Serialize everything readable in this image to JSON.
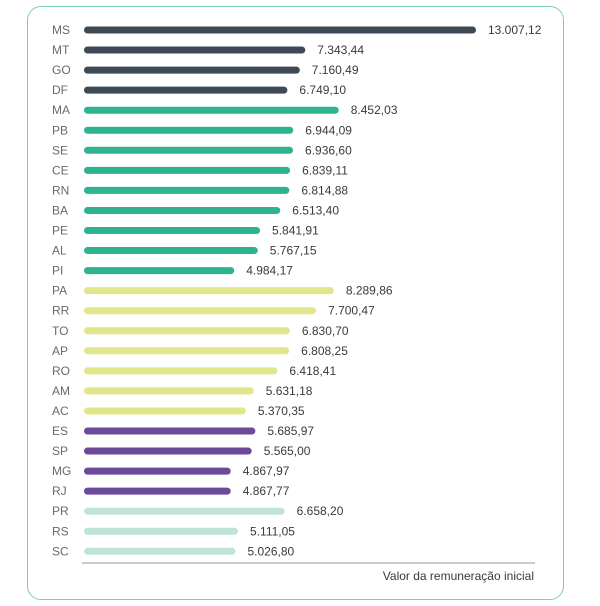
{
  "chart_data": {
    "type": "bar",
    "orientation": "horizontal",
    "title": "",
    "xlabel": "Valor da remuneração inicial",
    "ylabel": "",
    "xlim": [
      0,
      13007.12
    ],
    "grid": false,
    "categories": [
      "MS",
      "MT",
      "GO",
      "DF",
      "MA",
      "PB",
      "SE",
      "CE",
      "RN",
      "BA",
      "PE",
      "AL",
      "PI",
      "PA",
      "RR",
      "TO",
      "AP",
      "RO",
      "AM",
      "AC",
      "ES",
      "SP",
      "MG",
      "RJ",
      "PR",
      "RS",
      "SC"
    ],
    "values": [
      13007.12,
      7343.44,
      7160.49,
      6749.1,
      8452.03,
      6944.09,
      6936.6,
      6839.11,
      6814.88,
      6513.4,
      5841.91,
      5767.15,
      4984.17,
      8289.86,
      7700.47,
      6830.7,
      6808.25,
      6418.41,
      5631.18,
      5370.35,
      5685.97,
      5565.0,
      4867.97,
      4867.77,
      6658.2,
      5111.05,
      5026.8
    ],
    "value_labels": [
      "13.007,12",
      "7.343,44",
      "7.160,49",
      "6.749,10",
      "8.452,03",
      "6.944,09",
      "6.936,60",
      "6.839,11",
      "6.814,88",
      "6.513,40",
      "5.841,91",
      "5.767,15",
      "4.984,17",
      "8.289,86",
      "7.700,47",
      "6.830,70",
      "6.808,25",
      "6.418,41",
      "5.631,18",
      "5.370,35",
      "5.685,97",
      "5.565,00",
      "4.867,97",
      "4.867,77",
      "6.658,20",
      "5.111,05",
      "5.026,80"
    ],
    "groups": [
      0,
      0,
      0,
      0,
      1,
      1,
      1,
      1,
      1,
      1,
      1,
      1,
      1,
      2,
      2,
      2,
      2,
      2,
      2,
      2,
      3,
      3,
      3,
      3,
      4,
      4,
      4
    ],
    "group_colors": [
      "#3d4a55",
      "#2db38f",
      "#e2e68a",
      "#6b4a9a",
      "#bfe3d7"
    ]
  }
}
